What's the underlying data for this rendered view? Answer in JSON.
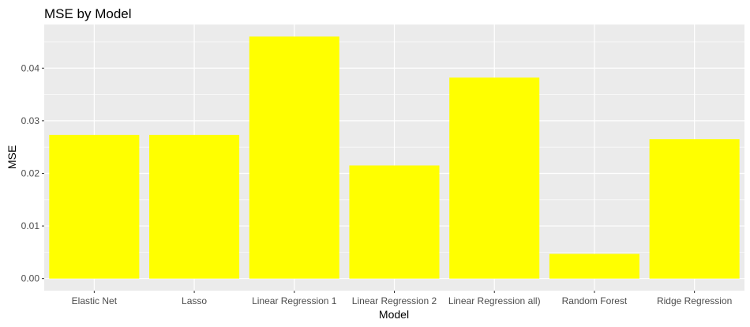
{
  "chart_data": {
    "type": "bar",
    "title": "MSE by Model",
    "xlabel": "Model",
    "ylabel": "MSE",
    "categories": [
      "Elastic Net",
      "Lasso",
      "Linear Regression 1",
      "Linear Regression 2",
      "Linear Regression all)",
      "Random Forest",
      "Ridge Regression"
    ],
    "values": [
      0.0273,
      0.0273,
      0.046,
      0.0215,
      0.0382,
      0.0047,
      0.0265
    ],
    "ylim": [
      -0.0023,
      0.0483
    ],
    "yticks": [
      0.0,
      0.01,
      0.02,
      0.03,
      0.04
    ],
    "ytick_labels": [
      "0.00",
      "0.01",
      "0.02",
      "0.03",
      "0.04"
    ],
    "grid": true,
    "bar_color": "#ffff00",
    "panel_background": "#ebebeb",
    "grid_color": "#ffffff"
  }
}
